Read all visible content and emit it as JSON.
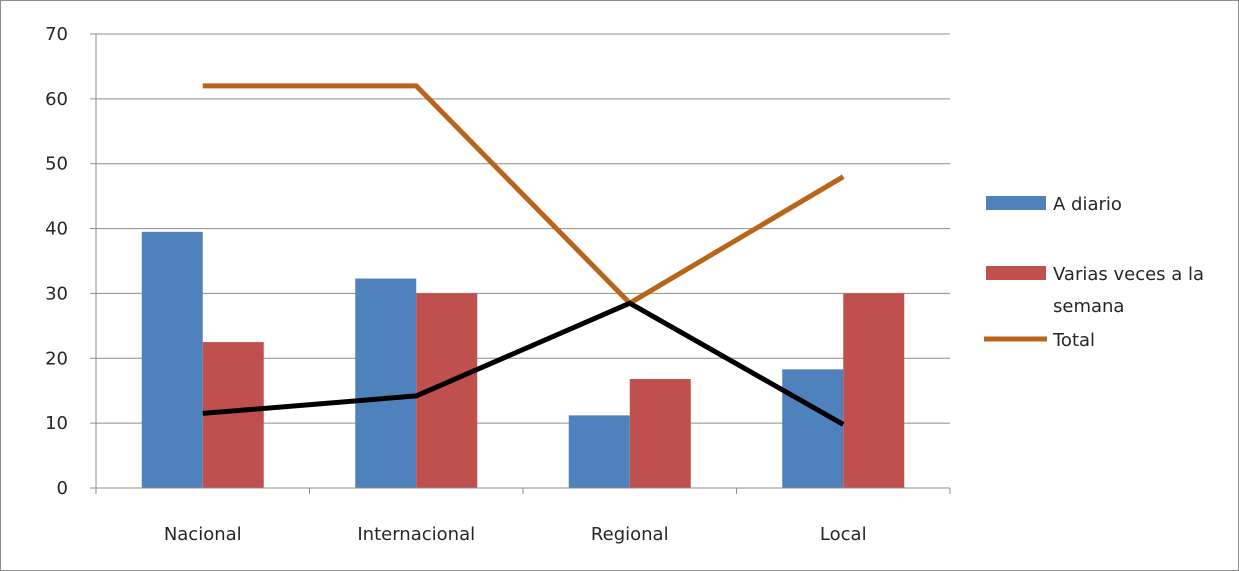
{
  "chart_data": {
    "type": "bar",
    "title": "",
    "xlabel": "",
    "ylabel": "",
    "categories": [
      "Nacional",
      "Internacional",
      "Regional",
      "Local"
    ],
    "ylim": [
      0,
      70
    ],
    "yticks": [
      0,
      10,
      20,
      30,
      40,
      50,
      60,
      70
    ],
    "grid": true,
    "legend_position": "right",
    "series": [
      {
        "name": "A diario",
        "type": "bar",
        "color": "#4f81bd",
        "values": [
          39.5,
          32.3,
          11.2,
          18.3
        ]
      },
      {
        "name": "Varias veces a la semana",
        "legend_lines": [
          "Varias veces a la",
          "semana"
        ],
        "type": "bar",
        "color": "#c0504d",
        "values": [
          22.5,
          30,
          16.8,
          30
        ]
      },
      {
        "name": "Total",
        "type": "line",
        "color": "#b8651a",
        "values": [
          62,
          62,
          28.5,
          48
        ]
      },
      {
        "type": "line",
        "color": "#000000",
        "values": [
          11.5,
          14.2,
          28.5,
          9.8
        ]
      }
    ]
  }
}
